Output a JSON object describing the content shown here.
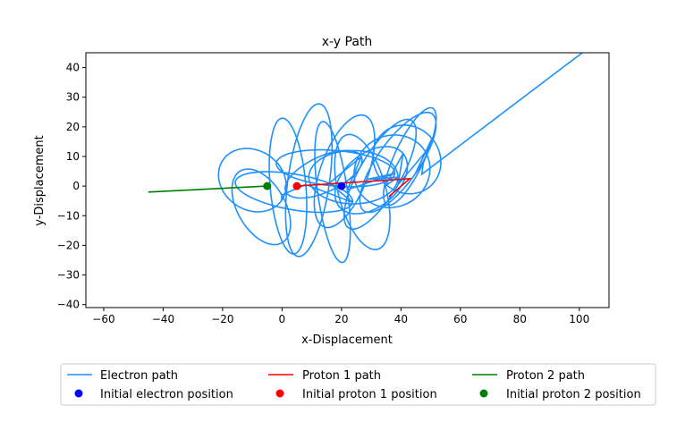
{
  "chart_data": {
    "type": "line",
    "title": "x-y Path",
    "xlabel": "x-Displacement",
    "ylabel": "y-Displacement",
    "xlim": [
      -66,
      110
    ],
    "ylim": [
      -41,
      45
    ],
    "xticks": [
      -60,
      -40,
      -20,
      0,
      20,
      40,
      60,
      80,
      100
    ],
    "yticks": [
      -40,
      -30,
      -20,
      -10,
      0,
      10,
      20,
      30,
      40
    ],
    "grid": false,
    "legend_placement": "below",
    "series": [
      {
        "name": "Electron path",
        "kind": "line",
        "color": "#1e90ff",
        "loops": [
          {
            "cx": -10,
            "cy": 2,
            "rx": 12,
            "ry": 10,
            "rot": -35
          },
          {
            "cx": -7,
            "cy": -7,
            "rx": 8,
            "ry": 14,
            "rot": 30
          },
          {
            "cx": 2,
            "cy": 0,
            "rx": 6,
            "ry": 23,
            "rot": 5
          },
          {
            "cx": 4,
            "cy": -2,
            "rx": 20,
            "ry": 6,
            "rot": -10
          },
          {
            "cx": 9,
            "cy": 2,
            "rx": 7,
            "ry": 26,
            "rot": -8
          },
          {
            "cx": 14,
            "cy": 4,
            "rx": 14,
            "ry": 6,
            "rot": 25
          },
          {
            "cx": 17,
            "cy": -2,
            "rx": 5,
            "ry": 24,
            "rot": 8
          },
          {
            "cx": 18,
            "cy": 6,
            "rx": 20,
            "ry": 6,
            "rot": -5
          },
          {
            "cx": 21,
            "cy": 5,
            "rx": 8,
            "ry": 20,
            "rot": -20
          },
          {
            "cx": 24,
            "cy": 3,
            "rx": 15,
            "ry": 9,
            "rot": 0
          },
          {
            "cx": 27,
            "cy": -2,
            "rx": 8,
            "ry": 20,
            "rot": 15
          },
          {
            "cx": 30,
            "cy": 2,
            "rx": 14,
            "ry": 9,
            "rot": 40
          },
          {
            "cx": 33,
            "cy": 4,
            "rx": 7,
            "ry": 21,
            "rot": -30
          },
          {
            "cx": 37,
            "cy": 5,
            "rx": 13,
            "ry": 12,
            "rot": 30
          },
          {
            "cx": 39,
            "cy": 8,
            "rx": 7,
            "ry": 20,
            "rot": -35
          },
          {
            "cx": 42,
            "cy": 9,
            "rx": 11,
            "ry": 12,
            "rot": 40
          },
          {
            "cx": 43,
            "cy": 10,
            "rx": 5,
            "ry": 18,
            "rot": -25
          }
        ],
        "tail": [
          [
            47,
            4
          ],
          [
            101,
            45
          ]
        ]
      },
      {
        "name": "Initial electron position",
        "kind": "marker",
        "color": "#0000ff",
        "x": [
          20
        ],
        "y": [
          0
        ]
      },
      {
        "name": "Proton 1 path",
        "kind": "line",
        "color": "#ff0000",
        "x": [
          5,
          20,
          43,
          36,
          43
        ],
        "y": [
          0,
          1,
          2.5,
          -3.5,
          2.5
        ]
      },
      {
        "name": "Initial proton 1 position",
        "kind": "marker",
        "color": "#ff0000",
        "x": [
          5
        ],
        "y": [
          0
        ]
      },
      {
        "name": "Proton 2 path",
        "kind": "line",
        "color": "#008000",
        "x": [
          -45,
          -5
        ],
        "y": [
          -2,
          0
        ]
      },
      {
        "name": "Initial proton 2 position",
        "kind": "marker",
        "color": "#008000",
        "x": [
          -5
        ],
        "y": [
          0
        ]
      }
    ]
  }
}
